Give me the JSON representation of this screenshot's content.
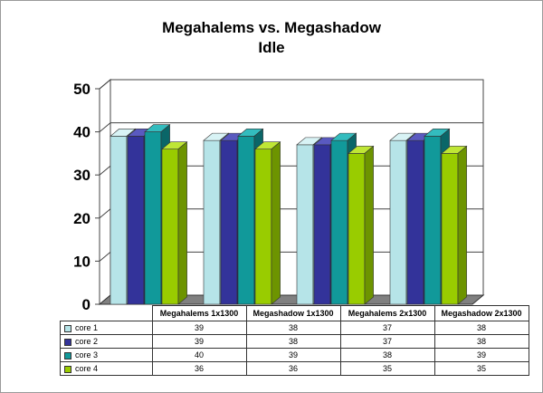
{
  "chart_data": {
    "type": "bar",
    "title": [
      "Megahalems vs. Megashadow",
      "Idle"
    ],
    "categories": [
      "Megahalems 1x1300",
      "Megashadow  1x1300",
      "Megahalems 2x1300",
      "Megashadow  2x1300"
    ],
    "series": [
      {
        "name": "core 1",
        "values": [
          39,
          38,
          37,
          38
        ],
        "color": "#b6e4e8",
        "side": "#8fbfc3",
        "topc": "#d8f3f5"
      },
      {
        "name": "core 2",
        "values": [
          39,
          38,
          37,
          38
        ],
        "color": "#33339a",
        "side": "#1f1f66",
        "topc": "#5a5ac0"
      },
      {
        "name": "core 3",
        "values": [
          40,
          39,
          38,
          39
        ],
        "color": "#11999a",
        "side": "#0a6668",
        "topc": "#33bcbe"
      },
      {
        "name": "core 4",
        "values": [
          36,
          36,
          35,
          35
        ],
        "color": "#99cc00",
        "side": "#6d9400",
        "topc": "#bfe635"
      }
    ],
    "yticks": [
      0,
      10,
      20,
      30,
      40,
      50
    ],
    "ylim": [
      0,
      50
    ],
    "grid": true,
    "legend": "table-below"
  }
}
